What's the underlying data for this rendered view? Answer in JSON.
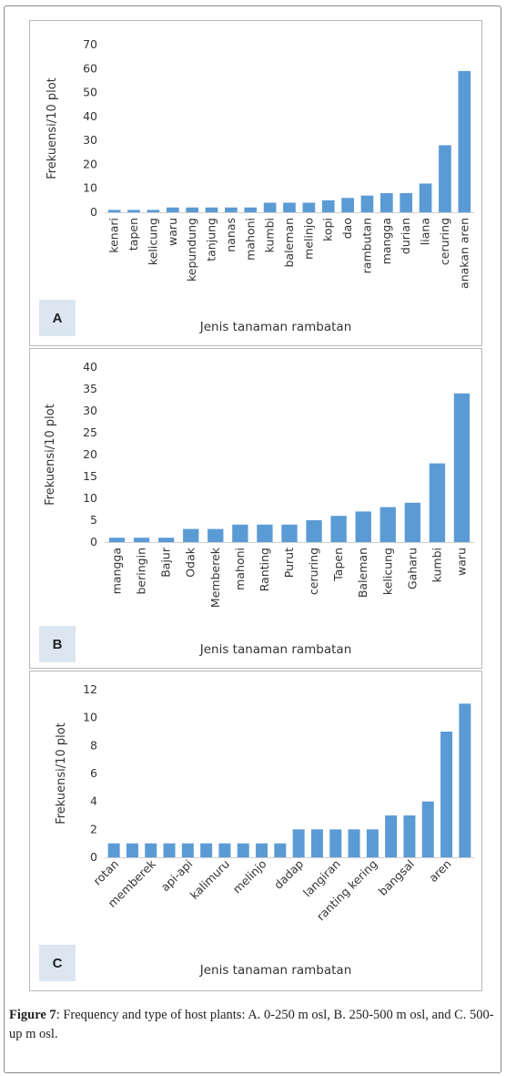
{
  "caption": {
    "label": "Figure 7",
    "text": ": Frequency and type of host plants: A. 0-250 m osl, B. 250-500 m osl, and C. 500-up m osl."
  },
  "chart_data": [
    {
      "type": "bar",
      "panel_label": "A",
      "xlabel": "Jenis tanaman rambatan",
      "ylabel": "Frekuensi/10 plot",
      "ylim": [
        0,
        70
      ],
      "yticks": [
        0,
        10,
        20,
        30,
        40,
        50,
        60,
        70
      ],
      "bar_color": "#5b9bd5",
      "grid": false,
      "label_rotation": -90,
      "categories": [
        "kenari",
        "tapen",
        "kelicung",
        "waru",
        "kepundung",
        "tanjung",
        "nanas",
        "mahoni",
        "kumbi",
        "baleman",
        "melinjo",
        "kopi",
        "dao",
        "rambutan",
        "mangga",
        "durian",
        "liana",
        "ceruring",
        "anakan aren"
      ],
      "values": [
        1,
        1,
        1,
        2,
        2,
        2,
        2,
        2,
        4,
        4,
        4,
        5,
        6,
        7,
        8,
        8,
        12,
        28,
        59
      ]
    },
    {
      "type": "bar",
      "panel_label": "B",
      "xlabel": "Jenis tanaman rambatan",
      "ylabel": "Frekuensi/10 plot",
      "ylim": [
        0,
        40
      ],
      "yticks": [
        0,
        5,
        10,
        15,
        20,
        25,
        30,
        35,
        40
      ],
      "bar_color": "#5b9bd5",
      "grid": false,
      "label_rotation": -90,
      "categories": [
        "mangga",
        "beringin",
        "Bajur",
        "Odak",
        "Memberek",
        "mahoni",
        "Ranting",
        "Purut",
        "ceruring",
        "Tapen",
        "Baleman",
        "kelicung",
        "Gaharu",
        "kumbi",
        "waru"
      ],
      "values": [
        1,
        1,
        1,
        3,
        3,
        4,
        4,
        4,
        5,
        6,
        7,
        8,
        9,
        18,
        34
      ]
    },
    {
      "type": "bar",
      "panel_label": "C",
      "xlabel": "Jenis tanaman rambatan",
      "ylabel": "Frekuensi/10 plot",
      "ylim": [
        0,
        12
      ],
      "yticks": [
        0,
        2,
        4,
        6,
        8,
        10,
        12
      ],
      "bar_color": "#5b9bd5",
      "grid": false,
      "label_rotation": -45,
      "categories": [
        "rotan",
        "",
        "memberek",
        "",
        "api-api",
        "",
        "kalimuru",
        "",
        "melinjo",
        "",
        "dadap",
        "",
        "langiran",
        "",
        "ranting kering",
        "",
        "bangsal",
        "",
        "aren",
        ""
      ],
      "values": [
        1,
        1,
        1,
        1,
        1,
        1,
        1,
        1,
        1,
        1,
        2,
        2,
        2,
        2,
        2,
        3,
        3,
        4,
        9,
        11
      ]
    }
  ]
}
